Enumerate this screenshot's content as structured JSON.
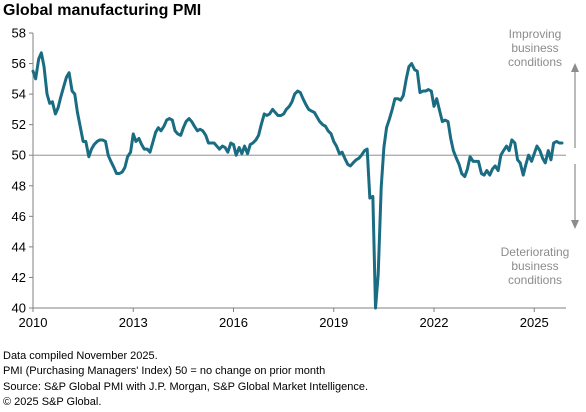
{
  "chart_data": {
    "type": "line",
    "title": "Global manufacturing PMI",
    "x_ticks": [
      "2010",
      "2013",
      "2016",
      "2019",
      "2022",
      "2025"
    ],
    "y_ticks": [
      40,
      42,
      44,
      46,
      48,
      50,
      52,
      54,
      56,
      58
    ],
    "ylim": [
      40,
      58
    ],
    "xlim": [
      2010.0,
      2025.95
    ],
    "reference_line": 50,
    "grid": false,
    "annotations": {
      "improving": [
        "Improving",
        "business",
        "conditions"
      ],
      "deteriorating": [
        "Deteriorating",
        "business",
        "conditions"
      ]
    },
    "series": [
      {
        "color": "#1a6c83",
        "points": [
          [
            2010.0,
            55.5
          ],
          [
            2010.08,
            55.0
          ],
          [
            2010.17,
            56.3
          ],
          [
            2010.25,
            56.7
          ],
          [
            2010.33,
            55.8
          ],
          [
            2010.42,
            54.0
          ],
          [
            2010.5,
            53.4
          ],
          [
            2010.58,
            53.5
          ],
          [
            2010.67,
            52.7
          ],
          [
            2010.75,
            53.1
          ],
          [
            2010.83,
            53.8
          ],
          [
            2010.92,
            54.5
          ],
          [
            2011.0,
            55.1
          ],
          [
            2011.08,
            55.4
          ],
          [
            2011.17,
            54.2
          ],
          [
            2011.25,
            54.0
          ],
          [
            2011.33,
            52.8
          ],
          [
            2011.42,
            51.8
          ],
          [
            2011.5,
            50.9
          ],
          [
            2011.58,
            50.9
          ],
          [
            2011.67,
            49.9
          ],
          [
            2011.75,
            50.4
          ],
          [
            2011.83,
            50.7
          ],
          [
            2011.92,
            50.9
          ],
          [
            2012.0,
            51.0
          ],
          [
            2012.08,
            51.0
          ],
          [
            2012.17,
            50.9
          ],
          [
            2012.25,
            50.0
          ],
          [
            2012.33,
            49.6
          ],
          [
            2012.42,
            49.2
          ],
          [
            2012.5,
            48.8
          ],
          [
            2012.58,
            48.8
          ],
          [
            2012.67,
            48.9
          ],
          [
            2012.75,
            49.2
          ],
          [
            2012.83,
            49.9
          ],
          [
            2012.92,
            50.2
          ],
          [
            2013.0,
            51.4
          ],
          [
            2013.08,
            50.9
          ],
          [
            2013.17,
            51.1
          ],
          [
            2013.25,
            50.7
          ],
          [
            2013.33,
            50.4
          ],
          [
            2013.42,
            50.4
          ],
          [
            2013.5,
            50.2
          ],
          [
            2013.58,
            50.8
          ],
          [
            2013.67,
            51.5
          ],
          [
            2013.75,
            51.8
          ],
          [
            2013.83,
            51.6
          ],
          [
            2013.92,
            51.9
          ],
          [
            2014.0,
            52.3
          ],
          [
            2014.08,
            52.4
          ],
          [
            2014.17,
            52.3
          ],
          [
            2014.25,
            51.6
          ],
          [
            2014.33,
            51.4
          ],
          [
            2014.42,
            51.3
          ],
          [
            2014.5,
            51.8
          ],
          [
            2014.58,
            52.2
          ],
          [
            2014.67,
            52.4
          ],
          [
            2014.75,
            52.2
          ],
          [
            2014.83,
            51.9
          ],
          [
            2014.92,
            51.6
          ],
          [
            2015.0,
            51.7
          ],
          [
            2015.08,
            51.6
          ],
          [
            2015.17,
            51.3
          ],
          [
            2015.25,
            50.8
          ],
          [
            2015.33,
            50.8
          ],
          [
            2015.42,
            50.8
          ],
          [
            2015.5,
            50.6
          ],
          [
            2015.58,
            50.4
          ],
          [
            2015.67,
            50.6
          ],
          [
            2015.75,
            50.5
          ],
          [
            2015.83,
            50.2
          ],
          [
            2015.92,
            50.8
          ],
          [
            2016.0,
            50.7
          ],
          [
            2016.08,
            50.0
          ],
          [
            2016.17,
            50.5
          ],
          [
            2016.25,
            50.1
          ],
          [
            2016.33,
            50.6
          ],
          [
            2016.42,
            50.1
          ],
          [
            2016.5,
            50.7
          ],
          [
            2016.58,
            50.8
          ],
          [
            2016.67,
            51.0
          ],
          [
            2016.75,
            51.3
          ],
          [
            2016.83,
            52.0
          ],
          [
            2016.92,
            52.7
          ],
          [
            2017.0,
            52.6
          ],
          [
            2017.08,
            52.7
          ],
          [
            2017.17,
            53.0
          ],
          [
            2017.25,
            52.8
          ],
          [
            2017.33,
            52.6
          ],
          [
            2017.42,
            52.6
          ],
          [
            2017.5,
            52.7
          ],
          [
            2017.58,
            53.0
          ],
          [
            2017.67,
            53.2
          ],
          [
            2017.75,
            53.5
          ],
          [
            2017.83,
            54.0
          ],
          [
            2017.92,
            54.2
          ],
          [
            2018.0,
            54.1
          ],
          [
            2018.08,
            53.7
          ],
          [
            2018.17,
            53.3
          ],
          [
            2018.25,
            53.0
          ],
          [
            2018.33,
            52.9
          ],
          [
            2018.42,
            52.8
          ],
          [
            2018.5,
            52.5
          ],
          [
            2018.58,
            52.2
          ],
          [
            2018.67,
            52.0
          ],
          [
            2018.75,
            51.9
          ],
          [
            2018.83,
            51.6
          ],
          [
            2018.92,
            51.4
          ],
          [
            2019.0,
            50.9
          ],
          [
            2019.08,
            50.6
          ],
          [
            2019.17,
            50.1
          ],
          [
            2019.25,
            50.2
          ],
          [
            2019.33,
            49.8
          ],
          [
            2019.42,
            49.4
          ],
          [
            2019.5,
            49.3
          ],
          [
            2019.58,
            49.5
          ],
          [
            2019.67,
            49.7
          ],
          [
            2019.75,
            49.8
          ],
          [
            2019.83,
            50.0
          ],
          [
            2019.92,
            50.3
          ],
          [
            2020.0,
            50.4
          ],
          [
            2020.08,
            47.2
          ],
          [
            2020.17,
            47.3
          ],
          [
            2020.25,
            40.0
          ],
          [
            2020.33,
            42.2
          ],
          [
            2020.42,
            47.9
          ],
          [
            2020.5,
            50.5
          ],
          [
            2020.58,
            51.8
          ],
          [
            2020.67,
            52.4
          ],
          [
            2020.75,
            53.0
          ],
          [
            2020.83,
            53.7
          ],
          [
            2020.92,
            53.7
          ],
          [
            2021.0,
            53.6
          ],
          [
            2021.08,
            53.9
          ],
          [
            2021.17,
            55.0
          ],
          [
            2021.25,
            55.8
          ],
          [
            2021.33,
            56.0
          ],
          [
            2021.42,
            55.6
          ],
          [
            2021.5,
            55.5
          ],
          [
            2021.58,
            54.1
          ],
          [
            2021.67,
            54.2
          ],
          [
            2021.75,
            54.2
          ],
          [
            2021.83,
            54.3
          ],
          [
            2021.92,
            54.2
          ],
          [
            2022.0,
            53.2
          ],
          [
            2022.08,
            53.7
          ],
          [
            2022.17,
            52.9
          ],
          [
            2022.25,
            52.2
          ],
          [
            2022.33,
            52.3
          ],
          [
            2022.42,
            52.2
          ],
          [
            2022.5,
            51.1
          ],
          [
            2022.58,
            50.3
          ],
          [
            2022.67,
            49.8
          ],
          [
            2022.75,
            49.4
          ],
          [
            2022.83,
            48.8
          ],
          [
            2022.92,
            48.6
          ],
          [
            2023.0,
            49.1
          ],
          [
            2023.08,
            49.9
          ],
          [
            2023.17,
            49.6
          ],
          [
            2023.25,
            49.6
          ],
          [
            2023.33,
            49.6
          ],
          [
            2023.42,
            48.8
          ],
          [
            2023.5,
            48.7
          ],
          [
            2023.58,
            49.0
          ],
          [
            2023.67,
            48.7
          ],
          [
            2023.75,
            49.1
          ],
          [
            2023.83,
            49.3
          ],
          [
            2023.92,
            49.0
          ],
          [
            2024.0,
            50.0
          ],
          [
            2024.08,
            50.3
          ],
          [
            2024.17,
            50.6
          ],
          [
            2024.25,
            50.3
          ],
          [
            2024.33,
            51.0
          ],
          [
            2024.42,
            50.8
          ],
          [
            2024.5,
            49.7
          ],
          [
            2024.58,
            49.5
          ],
          [
            2024.67,
            48.7
          ],
          [
            2024.75,
            49.4
          ],
          [
            2024.83,
            50.0
          ],
          [
            2024.92,
            49.6
          ],
          [
            2025.0,
            50.1
          ],
          [
            2025.08,
            50.6
          ],
          [
            2025.17,
            50.3
          ],
          [
            2025.25,
            49.8
          ],
          [
            2025.33,
            49.5
          ],
          [
            2025.42,
            50.3
          ],
          [
            2025.5,
            49.7
          ],
          [
            2025.58,
            50.8
          ],
          [
            2025.67,
            50.9
          ],
          [
            2025.75,
            50.8
          ],
          [
            2025.83,
            50.8
          ]
        ]
      }
    ]
  },
  "footnotes": [
    "Data compiled November 2025.",
    "PMI (Purchasing Managers' Index) 50 = no change on prior month",
    "Source: S&P Global  PMI with J.P. Morgan, S&P Global Market Intelligence.",
    "© 2025 S&P Global."
  ],
  "colors": {
    "line": "#1a6c83",
    "reference_line": "#a6a6a6",
    "axis": "#808080",
    "annotation_text": "#8c8c8c"
  }
}
